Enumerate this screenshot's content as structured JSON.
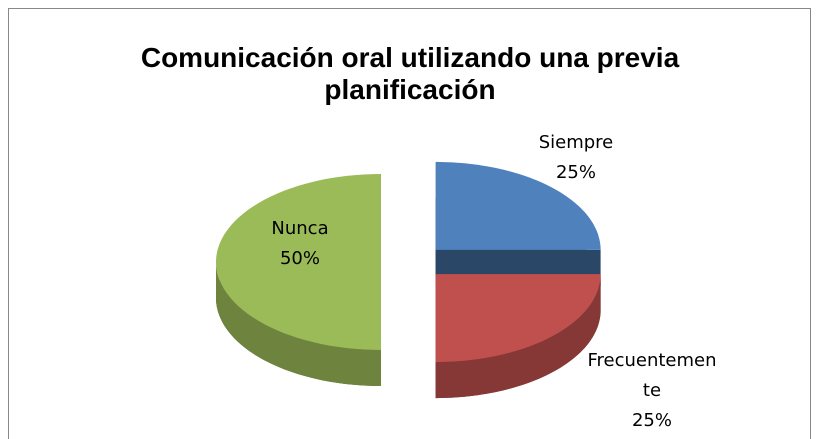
{
  "chart_data": {
    "type": "pie",
    "title": "Comunicación oral utilizando una previa planificación",
    "categories": [
      "Siempre",
      "Frecuentemente",
      "Nunca"
    ],
    "values": [
      25,
      25,
      50
    ],
    "value_labels": [
      "25%",
      "25%",
      "50%"
    ],
    "colors": [
      "#4f81bd",
      "#c0504d",
      "#9bbb59"
    ]
  }
}
